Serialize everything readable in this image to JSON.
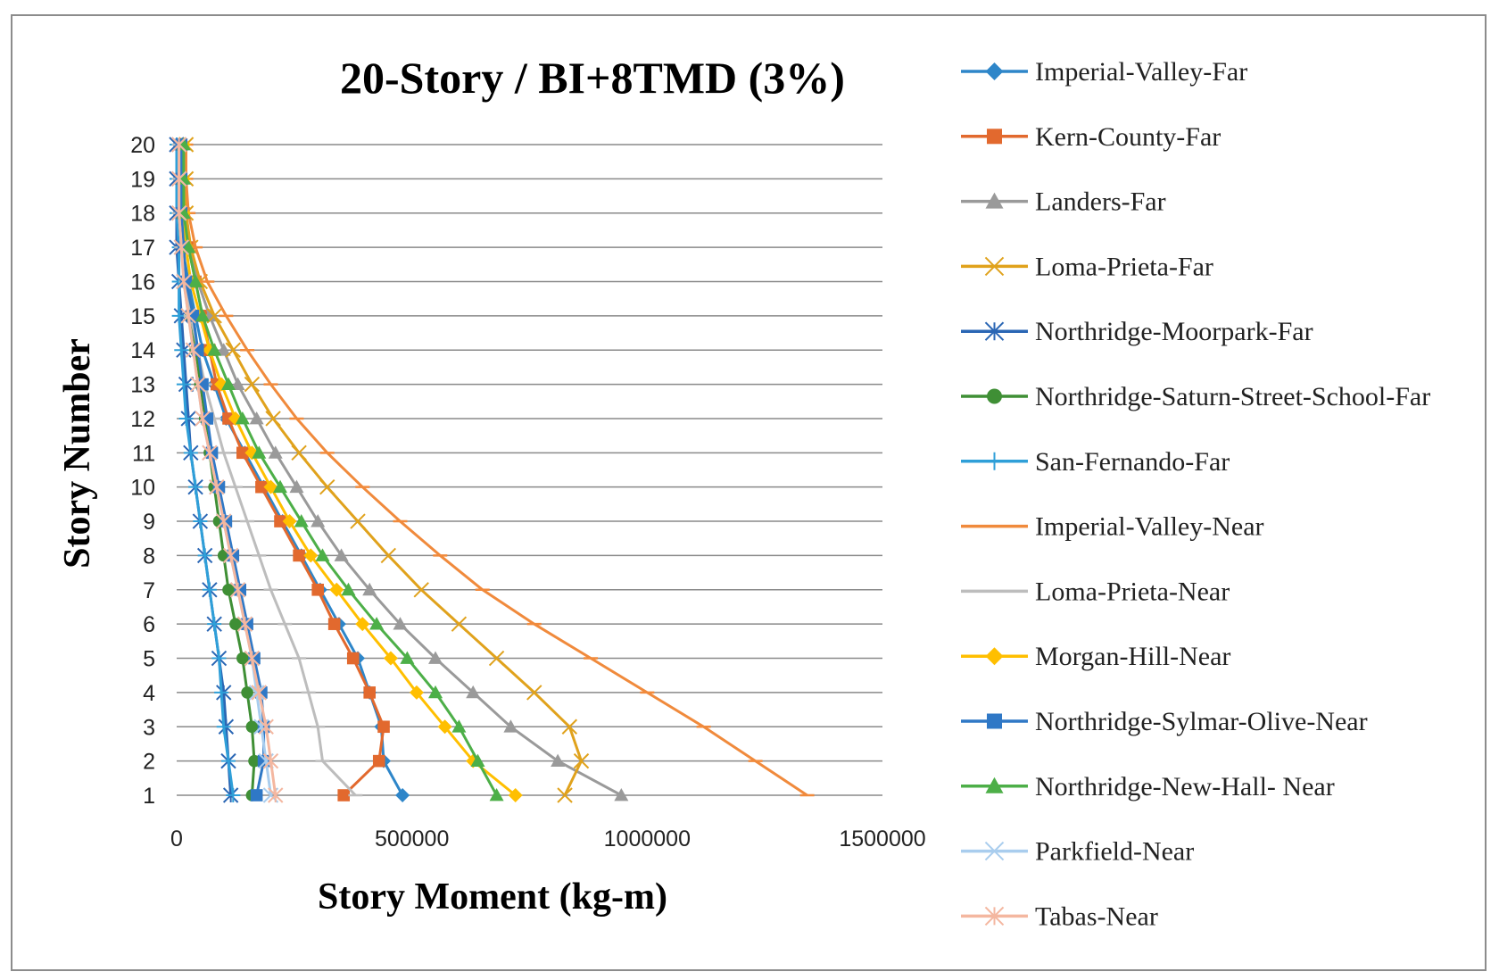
{
  "chart_data": {
    "type": "line",
    "title": "20-Story / BI+8TMD  (3%)",
    "xlabel": "Story Moment (kg-m)",
    "ylabel": "Story Number",
    "xlim": [
      0,
      1500000
    ],
    "xticks": [
      "0",
      "500000",
      "1000000",
      "1500000"
    ],
    "ylim": [
      1,
      20
    ],
    "yticks": [
      "1",
      "2",
      "3",
      "4",
      "5",
      "6",
      "7",
      "8",
      "9",
      "10",
      "11",
      "12",
      "13",
      "14",
      "15",
      "16",
      "17",
      "18",
      "19",
      "20"
    ],
    "grid": "horizontal",
    "legend_position": "right",
    "y": [
      1,
      2,
      3,
      4,
      5,
      6,
      7,
      8,
      9,
      10,
      11,
      12,
      13,
      14,
      15,
      16,
      17,
      18,
      19,
      20
    ],
    "series": [
      {
        "name": "Imperial-Valley-Far",
        "color": "#2e86c9",
        "marker": "diamond",
        "values": [
          480000,
          440000,
          435000,
          410000,
          385000,
          345000,
          305000,
          265000,
          225000,
          185000,
          145000,
          105000,
          80000,
          55000,
          40000,
          25000,
          12000,
          5000,
          5000,
          5000
        ]
      },
      {
        "name": "Kern-County-Far",
        "color": "#e2692e",
        "marker": "square",
        "values": [
          355000,
          430000,
          440000,
          410000,
          375000,
          335000,
          300000,
          260000,
          220000,
          180000,
          140000,
          110000,
          85000,
          70000,
          55000,
          40000,
          25000,
          15000,
          10000,
          10000
        ]
      },
      {
        "name": "Landers-Far",
        "color": "#9a9a9a",
        "marker": "triangle",
        "values": [
          945000,
          810000,
          710000,
          630000,
          550000,
          475000,
          410000,
          350000,
          300000,
          255000,
          210000,
          170000,
          130000,
          100000,
          70000,
          45000,
          25000,
          15000,
          10000,
          10000
        ]
      },
      {
        "name": "Loma-Prieta-Far",
        "color": "#e0a21c",
        "marker": "x",
        "values": [
          825000,
          860000,
          835000,
          760000,
          680000,
          600000,
          520000,
          450000,
          385000,
          320000,
          260000,
          205000,
          160000,
          120000,
          80000,
          50000,
          30000,
          20000,
          20000,
          20000
        ]
      },
      {
        "name": "Northridge-Moorpark-Far",
        "color": "#2a66b4",
        "marker": "asterisk",
        "values": [
          115000,
          110000,
          105000,
          100000,
          90000,
          80000,
          70000,
          60000,
          50000,
          40000,
          30000,
          25000,
          20000,
          15000,
          10000,
          5000,
          0,
          0,
          0,
          0
        ]
      },
      {
        "name": "Northridge-Saturn-Street-School-Far",
        "color": "#3f8f35",
        "marker": "circle",
        "values": [
          160000,
          165000,
          160000,
          150000,
          140000,
          125000,
          110000,
          100000,
          90000,
          80000,
          70000,
          60000,
          50000,
          40000,
          30000,
          20000,
          15000,
          10000,
          10000,
          10000
        ]
      },
      {
        "name": "San-Fernando-Far",
        "color": "#2f9fd8",
        "marker": "plus",
        "values": [
          120000,
          110000,
          100000,
          95000,
          90000,
          80000,
          70000,
          60000,
          50000,
          40000,
          30000,
          20000,
          15000,
          10000,
          5000,
          5000,
          5000,
          0,
          0,
          0
        ]
      },
      {
        "name": "Imperial-Valley-Near",
        "color": "#f08a3c",
        "marker": "dash",
        "values": [
          1340000,
          1230000,
          1120000,
          1000000,
          880000,
          760000,
          650000,
          560000,
          475000,
          395000,
          320000,
          255000,
          200000,
          150000,
          105000,
          65000,
          40000,
          25000,
          20000,
          20000
        ]
      },
      {
        "name": "Loma-Prieta-Near",
        "color": "#bdbdbd",
        "marker": "dash",
        "values": [
          380000,
          310000,
          300000,
          280000,
          260000,
          230000,
          200000,
          175000,
          150000,
          125000,
          100000,
          80000,
          60000,
          45000,
          30000,
          20000,
          10000,
          5000,
          5000,
          5000
        ]
      },
      {
        "name": "Morgan-Hill-Near",
        "color": "#ffbf00",
        "marker": "diamond",
        "values": [
          720000,
          630000,
          570000,
          510000,
          455000,
          395000,
          340000,
          285000,
          240000,
          200000,
          160000,
          125000,
          95000,
          70000,
          50000,
          30000,
          20000,
          15000,
          15000,
          15000
        ]
      },
      {
        "name": "Northridge-Sylmar-Olive-Near",
        "color": "#2f78c6",
        "marker": "square",
        "values": [
          170000,
          185000,
          185000,
          180000,
          165000,
          150000,
          135000,
          120000,
          105000,
          90000,
          75000,
          65000,
          55000,
          45000,
          35000,
          20000,
          15000,
          10000,
          10000,
          10000
        ]
      },
      {
        "name": "Northridge-New-Hall- Near",
        "color": "#4daf48",
        "marker": "triangle",
        "values": [
          680000,
          640000,
          600000,
          550000,
          490000,
          425000,
          365000,
          310000,
          265000,
          220000,
          175000,
          140000,
          110000,
          80000,
          55000,
          40000,
          25000,
          15000,
          15000,
          15000
        ]
      },
      {
        "name": "Parkfield-Near",
        "color": "#a9cdee",
        "marker": "x",
        "values": [
          200000,
          190000,
          180000,
          170000,
          160000,
          145000,
          130000,
          115000,
          100000,
          85000,
          70000,
          55000,
          45000,
          35000,
          25000,
          15000,
          10000,
          5000,
          5000,
          5000
        ]
      },
      {
        "name": "Tabas-Near",
        "color": "#f4b7a0",
        "marker": "asterisk",
        "values": [
          210000,
          200000,
          190000,
          175000,
          160000,
          145000,
          130000,
          115000,
          100000,
          85000,
          70000,
          55000,
          45000,
          35000,
          25000,
          15000,
          10000,
          5000,
          5000,
          5000
        ]
      }
    ]
  }
}
